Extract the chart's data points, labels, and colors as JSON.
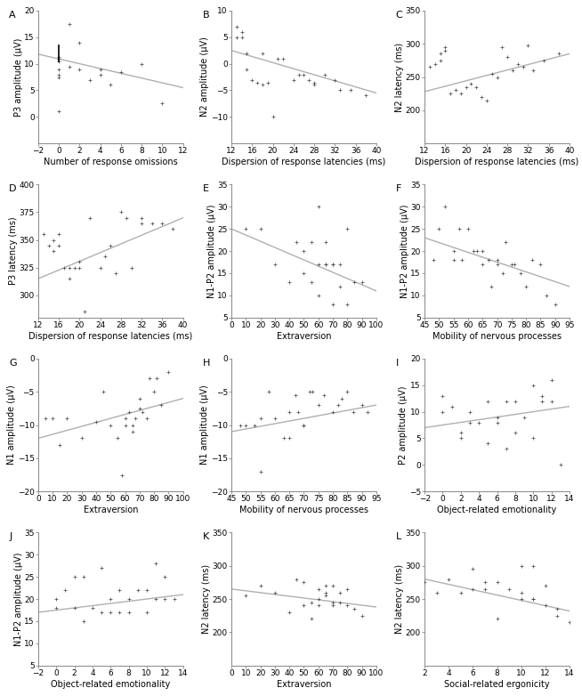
{
  "panels": [
    {
      "label": "A",
      "xlabel": "Number of response omissions",
      "ylabel": "P3 amplitude (μV)",
      "xlim": [
        -2,
        12
      ],
      "ylim": [
        -5,
        20
      ],
      "xticks": [
        -2,
        0,
        2,
        4,
        6,
        8,
        10,
        12
      ],
      "yticks": [
        0,
        5,
        10,
        15,
        20
      ],
      "scatter_x": [
        0,
        0,
        0,
        0,
        0,
        0,
        0,
        1,
        1,
        2,
        2,
        3,
        4,
        4,
        5,
        6,
        8,
        10
      ],
      "scatter_y": [
        11,
        11.3,
        10.5,
        9,
        8,
        7.5,
        1,
        17.5,
        9.5,
        14,
        9,
        7,
        9,
        8,
        6,
        8.5,
        10,
        2.5
      ],
      "line_x": [
        -2,
        12
      ],
      "line_y": [
        11.8,
        5.5
      ],
      "has_vline": true,
      "vline_x": 0,
      "vline_y": [
        10.5,
        13.5
      ]
    },
    {
      "label": "B",
      "xlabel": "Dispersion of response latencies (ms)",
      "ylabel": "N2 amplitude (μV)",
      "xlim": [
        12,
        40
      ],
      "ylim": [
        -15,
        10
      ],
      "xticks": [
        12,
        16,
        20,
        24,
        28,
        32,
        36,
        40
      ],
      "yticks": [
        -10,
        -5,
        0,
        5,
        10
      ],
      "scatter_x": [
        13,
        13,
        14,
        14,
        15,
        15,
        16,
        17,
        18,
        18,
        19,
        20,
        21,
        22,
        24,
        25,
        26,
        27,
        28,
        28,
        30,
        32,
        33,
        35,
        38
      ],
      "scatter_y": [
        7,
        5,
        6,
        5,
        2,
        -1,
        -3,
        -3.5,
        2,
        -4,
        -3.5,
        -10,
        1,
        1,
        -3,
        -2,
        -2,
        -3,
        -4,
        -3.5,
        -2,
        -3,
        -5,
        -5,
        -6
      ],
      "line_x": [
        12,
        40
      ],
      "line_y": [
        2.5,
        -5.5
      ],
      "has_vline": false
    },
    {
      "label": "C",
      "xlabel": "Dispersion of response latencies (ms)",
      "ylabel": "N2 latency (ms)",
      "xlim": [
        12,
        40
      ],
      "ylim": [
        150,
        350
      ],
      "xticks": [
        12,
        16,
        20,
        24,
        28,
        32,
        36,
        40
      ],
      "yticks": [
        200,
        250,
        300,
        350
      ],
      "scatter_x": [
        13,
        14,
        15,
        15,
        16,
        16,
        17,
        18,
        19,
        20,
        21,
        22,
        23,
        24,
        25,
        26,
        27,
        28,
        29,
        30,
        31,
        32,
        33,
        35,
        38
      ],
      "scatter_y": [
        265,
        270,
        275,
        285,
        295,
        290,
        225,
        230,
        225,
        235,
        240,
        235,
        220,
        215,
        255,
        250,
        295,
        280,
        260,
        270,
        265,
        298,
        260,
        275,
        285
      ],
      "line_x": [
        12,
        40
      ],
      "line_y": [
        228,
        285
      ],
      "has_vline": false
    },
    {
      "label": "D",
      "xlabel": "Dispersion of response latencies (ms)",
      "ylabel": "P3 latency (ms)",
      "xlim": [
        12,
        40
      ],
      "ylim": [
        280,
        400
      ],
      "xticks": [
        12,
        16,
        20,
        24,
        28,
        32,
        36,
        40
      ],
      "yticks": [
        300,
        325,
        350,
        375,
        400
      ],
      "scatter_x": [
        13,
        14,
        15,
        15,
        16,
        16,
        17,
        18,
        18,
        19,
        20,
        20,
        21,
        22,
        24,
        25,
        26,
        27,
        28,
        29,
        30,
        32,
        32,
        34,
        36,
        38
      ],
      "scatter_y": [
        355,
        345,
        350,
        340,
        355,
        345,
        325,
        325,
        315,
        325,
        330,
        325,
        285,
        370,
        325,
        335,
        345,
        320,
        375,
        370,
        325,
        370,
        365,
        365,
        365,
        360
      ],
      "line_x": [
        12,
        40
      ],
      "line_y": [
        315,
        370
      ],
      "has_vline": false
    },
    {
      "label": "E",
      "xlabel": "Extraversion",
      "ylabel": "N1-P2 amplitude (μV)",
      "xlim": [
        0,
        100
      ],
      "ylim": [
        5,
        35
      ],
      "xticks": [
        0,
        10,
        20,
        30,
        40,
        50,
        60,
        70,
        80,
        90,
        100
      ],
      "yticks": [
        5,
        10,
        15,
        20,
        25,
        30,
        35
      ],
      "scatter_x": [
        10,
        20,
        30,
        40,
        45,
        50,
        50,
        55,
        55,
        60,
        60,
        60,
        65,
        65,
        65,
        70,
        70,
        70,
        75,
        75,
        80,
        80,
        85,
        90
      ],
      "scatter_y": [
        25,
        25,
        17,
        13,
        22,
        20,
        15,
        22,
        13,
        30,
        17,
        10,
        22,
        17,
        17,
        17,
        17,
        8,
        17,
        12,
        25,
        8,
        13,
        13
      ],
      "line_x": [
        0,
        100
      ],
      "line_y": [
        25,
        11
      ],
      "has_vline": false
    },
    {
      "label": "F",
      "xlabel": "Mobility of nervous processes",
      "ylabel": "N1-P2 amplitude (μV)",
      "xlim": [
        45,
        95
      ],
      "ylim": [
        5,
        35
      ],
      "xticks": [
        45,
        50,
        55,
        60,
        65,
        70,
        75,
        80,
        85,
        90,
        95
      ],
      "yticks": [
        5,
        10,
        15,
        20,
        25,
        30,
        35
      ],
      "scatter_x": [
        48,
        50,
        52,
        55,
        55,
        57,
        58,
        60,
        62,
        63,
        65,
        65,
        67,
        68,
        70,
        70,
        72,
        73,
        75,
        76,
        78,
        80,
        82,
        85,
        87,
        90
      ],
      "scatter_y": [
        18,
        25,
        30,
        20,
        18,
        25,
        18,
        25,
        20,
        20,
        20,
        17,
        18,
        12,
        18,
        17,
        15,
        22,
        17,
        17,
        15,
        12,
        18,
        17,
        10,
        8
      ],
      "line_x": [
        45,
        95
      ],
      "line_y": [
        23,
        12
      ],
      "has_vline": false
    },
    {
      "label": "G",
      "xlabel": "Extraversion",
      "ylabel": "N1 amplitude (μV)",
      "xlim": [
        0,
        100
      ],
      "ylim": [
        -20,
        0
      ],
      "xticks": [
        0,
        10,
        20,
        30,
        40,
        50,
        60,
        70,
        80,
        90,
        100
      ],
      "yticks": [
        -20,
        -15,
        -10,
        -5,
        0
      ],
      "scatter_x": [
        5,
        10,
        15,
        20,
        30,
        40,
        45,
        50,
        55,
        58,
        60,
        60,
        63,
        65,
        65,
        67,
        70,
        70,
        72,
        75,
        77,
        80,
        82,
        85,
        90
      ],
      "scatter_y": [
        -9,
        -9,
        -13,
        -9,
        -12,
        -9.5,
        -5,
        -10,
        -12,
        -17.5,
        -10,
        -9,
        -8,
        -11,
        -10,
        -9,
        -7.5,
        -6,
        -8,
        -9,
        -3,
        -5,
        -3,
        -7,
        -2
      ],
      "line_x": [
        0,
        100
      ],
      "line_y": [
        -12,
        -6
      ],
      "has_vline": false
    },
    {
      "label": "H",
      "xlabel": "Mobility of nervous processes",
      "ylabel": "N1 amplitude (μV)",
      "xlim": [
        45,
        95
      ],
      "ylim": [
        -20,
        0
      ],
      "xticks": [
        45,
        50,
        55,
        60,
        65,
        70,
        75,
        80,
        85,
        90,
        95
      ],
      "yticks": [
        -20,
        -15,
        -10,
        -5,
        0
      ],
      "scatter_x": [
        48,
        50,
        53,
        55,
        55,
        58,
        60,
        63,
        65,
        65,
        67,
        68,
        70,
        70,
        72,
        73,
        75,
        77,
        80,
        82,
        83,
        85,
        87,
        90,
        92
      ],
      "scatter_y": [
        -10,
        -10,
        -10,
        -9,
        -17,
        -5,
        -9,
        -12,
        -12,
        -8,
        -5.5,
        -8,
        -10,
        -10,
        -5,
        -5,
        -7,
        -5.5,
        -8,
        -7,
        -6,
        -5,
        -8,
        -7,
        -8
      ],
      "line_x": [
        45,
        95
      ],
      "line_y": [
        -11,
        -7
      ],
      "has_vline": false
    },
    {
      "label": "I",
      "xlabel": "Object-related emotionality",
      "ylabel": "P2 amplitude (μV)",
      "xlim": [
        -2,
        14
      ],
      "ylim": [
        -5,
        20
      ],
      "xticks": [
        -2,
        0,
        2,
        4,
        6,
        8,
        10,
        12,
        14
      ],
      "yticks": [
        -5,
        0,
        5,
        10,
        15,
        20
      ],
      "scatter_x": [
        0,
        0,
        1,
        2,
        2,
        3,
        3,
        4,
        5,
        5,
        6,
        6,
        7,
        7,
        8,
        8,
        9,
        10,
        10,
        11,
        11,
        12,
        12,
        13
      ],
      "scatter_y": [
        13,
        10,
        11,
        6,
        5,
        10,
        8,
        8,
        4,
        12,
        9,
        8,
        12,
        3,
        12,
        6,
        9,
        15,
        5,
        13,
        12,
        16,
        12,
        0
      ],
      "line_x": [
        -2,
        14
      ],
      "line_y": [
        7,
        11
      ],
      "has_vline": false
    },
    {
      "label": "J",
      "xlabel": "Object-related emotionality",
      "ylabel": "N1-P2 amplitude (μV)",
      "xlim": [
        -2,
        14
      ],
      "ylim": [
        5,
        35
      ],
      "xticks": [
        -2,
        0,
        2,
        4,
        6,
        8,
        10,
        12,
        14
      ],
      "yticks": [
        5,
        10,
        15,
        20,
        25,
        30,
        35
      ],
      "scatter_x": [
        0,
        0,
        1,
        2,
        2,
        3,
        3,
        4,
        5,
        5,
        6,
        6,
        7,
        7,
        8,
        8,
        9,
        10,
        10,
        11,
        11,
        12,
        12,
        13
      ],
      "scatter_y": [
        18,
        20,
        22,
        25,
        18,
        25,
        15,
        18,
        17,
        27,
        20,
        17,
        22,
        17,
        20,
        17,
        22,
        22,
        17,
        28,
        20,
        20,
        25,
        20
      ],
      "line_x": [
        -2,
        14
      ],
      "line_y": [
        17,
        21
      ],
      "has_vline": false
    },
    {
      "label": "K",
      "xlabel": "Extraversion",
      "ylabel": "N2 latency (ms)",
      "xlim": [
        0,
        100
      ],
      "ylim": [
        150,
        350
      ],
      "xticks": [
        0,
        10,
        20,
        30,
        40,
        50,
        60,
        70,
        80,
        90,
        100
      ],
      "yticks": [
        200,
        250,
        300,
        350
      ],
      "scatter_x": [
        10,
        20,
        30,
        40,
        45,
        50,
        50,
        55,
        55,
        60,
        60,
        60,
        65,
        65,
        65,
        70,
        70,
        70,
        75,
        75,
        80,
        80,
        85,
        90
      ],
      "scatter_y": [
        255,
        270,
        260,
        230,
        280,
        240,
        275,
        245,
        220,
        265,
        250,
        240,
        255,
        260,
        270,
        245,
        240,
        270,
        260,
        245,
        265,
        240,
        235,
        225
      ],
      "line_x": [
        0,
        100
      ],
      "line_y": [
        265,
        238
      ],
      "has_vline": false
    },
    {
      "label": "L",
      "xlabel": "Social-related ergonicity",
      "ylabel": "N2 latency (ms)",
      "xlim": [
        2,
        14
      ],
      "ylim": [
        150,
        350
      ],
      "xticks": [
        2,
        4,
        6,
        8,
        10,
        12,
        14
      ],
      "yticks": [
        200,
        250,
        300,
        350
      ],
      "scatter_x": [
        2,
        3,
        4,
        5,
        6,
        6,
        7,
        7,
        8,
        8,
        9,
        10,
        10,
        10,
        11,
        11,
        11,
        12,
        12,
        13,
        13,
        14
      ],
      "scatter_y": [
        275,
        260,
        280,
        260,
        265,
        295,
        275,
        265,
        275,
        220,
        265,
        300,
        260,
        250,
        300,
        250,
        250,
        270,
        240,
        235,
        225,
        215
      ],
      "line_x": [
        2,
        14
      ],
      "line_y": [
        280,
        232
      ],
      "has_vline": false
    }
  ],
  "line_color": "#b0b0b0",
  "scatter_color": "#444444",
  "scatter_size": 5,
  "line_width": 1.0,
  "label_fontsize": 7,
  "tick_fontsize": 6.5,
  "panel_label_fontsize": 8
}
